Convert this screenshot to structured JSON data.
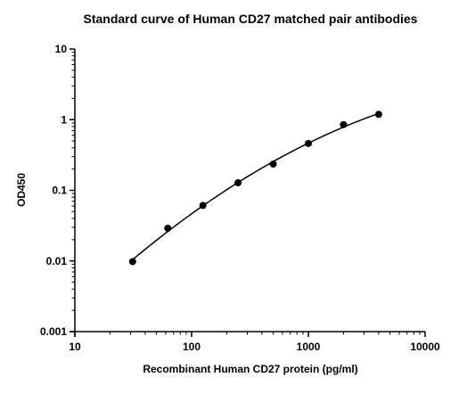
{
  "chart_data": {
    "type": "scatter",
    "title": "Standard curve of Human CD27 matched pair antibodies",
    "xlabel": "Recombinant Human CD27 protein (pg/ml)",
    "ylabel": "OD450",
    "x_scale": "log",
    "y_scale": "log",
    "xlim": [
      10,
      10000
    ],
    "ylim": [
      0.001,
      10
    ],
    "x_ticks": [
      10,
      100,
      1000,
      10000
    ],
    "x_tick_labels": [
      "10",
      "100",
      "1000",
      "10000"
    ],
    "y_ticks": [
      0.001,
      0.01,
      0.1,
      1,
      10
    ],
    "y_tick_labels": [
      "0.001",
      "0.01",
      "0.1",
      "1",
      "10"
    ],
    "grid": false,
    "legend": "none",
    "fit_line": true,
    "marker_color": "#000000",
    "series": [
      {
        "x": [
          31.25,
          62.5,
          125,
          250,
          500,
          1000,
          2000,
          4000
        ],
        "y": [
          0.0098,
          0.029,
          0.061,
          0.128,
          0.235,
          0.46,
          0.85,
          1.19
        ]
      }
    ]
  }
}
